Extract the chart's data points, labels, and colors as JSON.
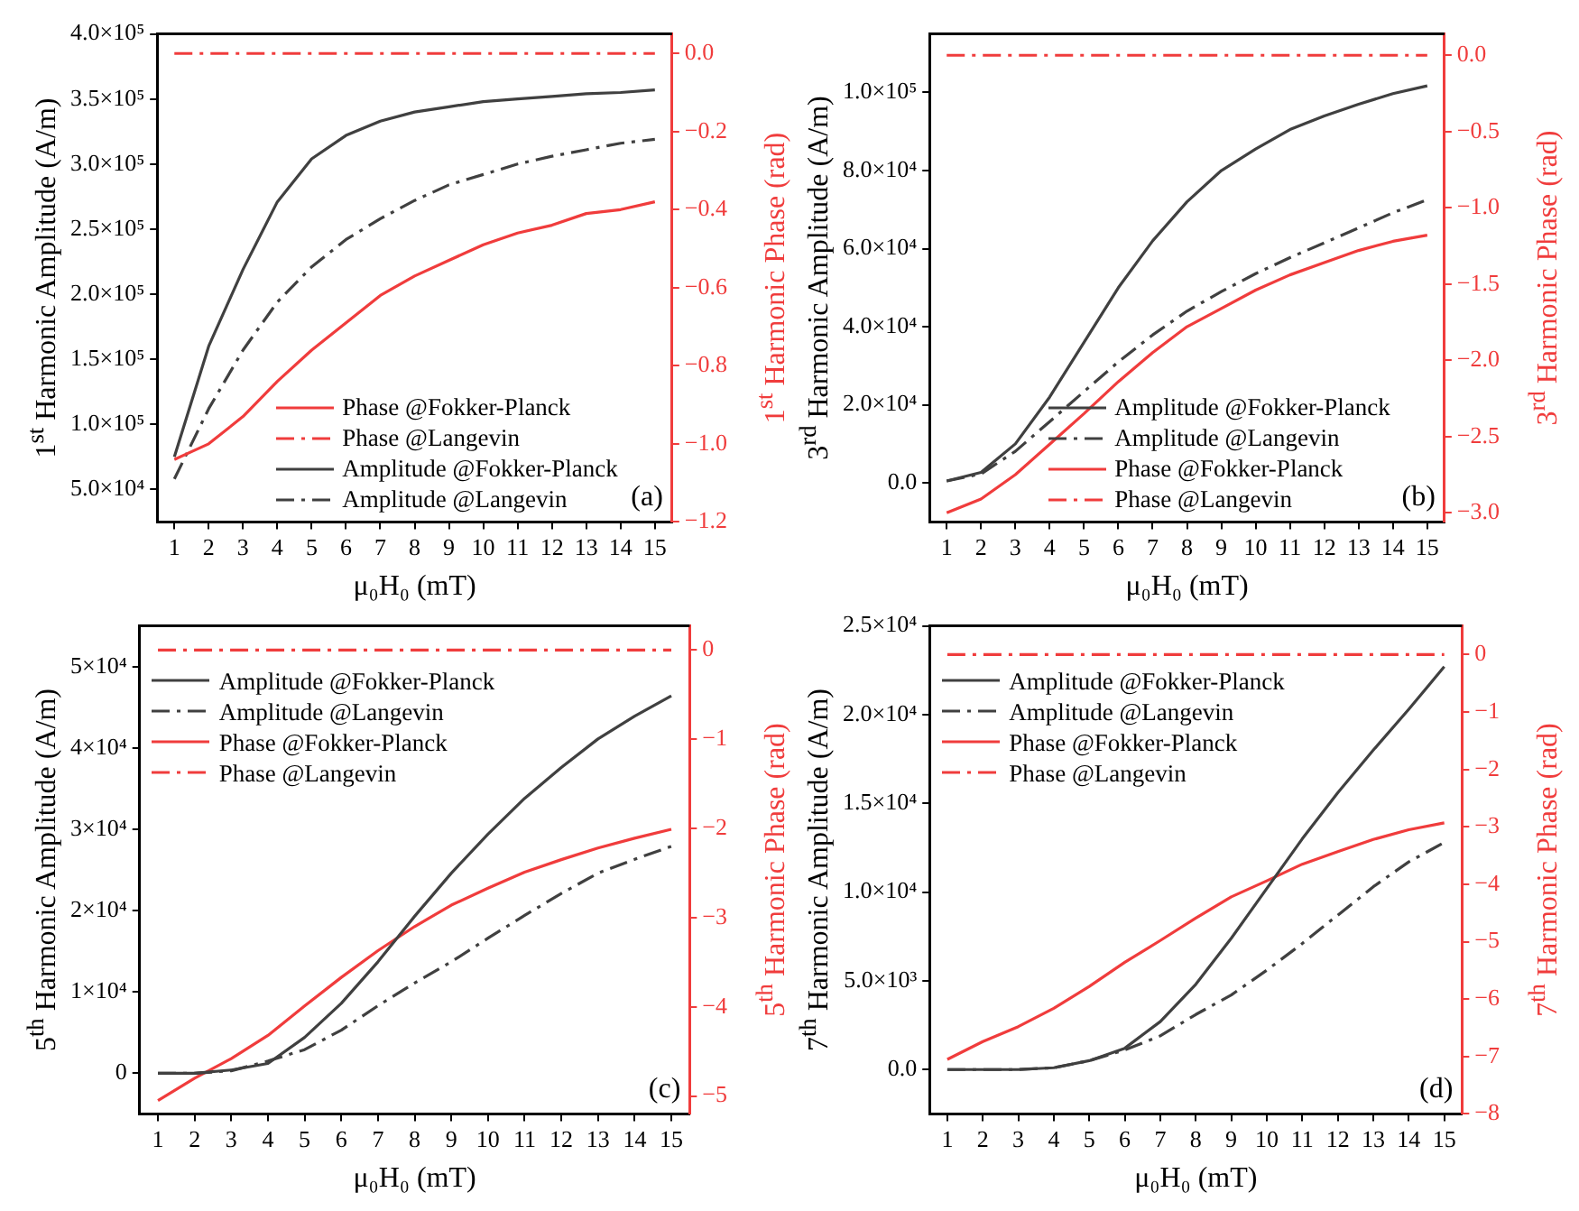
{
  "chart_data": [
    {
      "type": "line",
      "xlabel": "μ₀H₀ (mT)",
      "ylabel": "1$^{st}$ Harmonic Amplitude (A/m)",
      "y2label": "1$^{st}$ Harmonic Phase (rad)",
      "x": [
        1,
        2,
        3,
        4,
        5,
        6,
        7,
        8,
        9,
        10,
        11,
        12,
        13,
        14,
        15
      ],
      "series": [
        {
          "name": "Phase @Fokker-Planck",
          "color": "#f03c3c",
          "axis": "y2",
          "line_style": "solid",
          "values": [
            -1.04,
            -1.0,
            -0.93,
            -0.84,
            -0.76,
            -0.69,
            -0.62,
            -0.57,
            -0.53,
            -0.49,
            -0.46,
            -0.44,
            -0.41,
            -0.4,
            -0.38
          ]
        },
        {
          "name": "Phase @Langevin",
          "color": "#f03c3c",
          "axis": "y2",
          "line_style": "dashed",
          "values": [
            0,
            0,
            0,
            0,
            0,
            0,
            0,
            0,
            0,
            0,
            0,
            0,
            0,
            0,
            0
          ]
        },
        {
          "name": "Amplitude @Fokker-Planck",
          "color": "#404040",
          "line_style": "solid",
          "values": [
            75000,
            160000,
            219000,
            271000,
            304000,
            322000,
            333000,
            340000,
            344000,
            348000,
            350000,
            352000,
            354000,
            355000,
            357000
          ]
        },
        {
          "name": "Amplitude @Langevin",
          "color": "#404040",
          "line_style": "dashed",
          "values": [
            58000,
            112000,
            157000,
            194000,
            221000,
            242000,
            258000,
            272000,
            284000,
            292000,
            300000,
            306000,
            311000,
            316000,
            319000
          ]
        }
      ],
      "xlim": [
        0.5,
        15.5
      ],
      "xticks": [
        1,
        2,
        3,
        4,
        5,
        6,
        7,
        8,
        9,
        10,
        11,
        12,
        13,
        14,
        15
      ],
      "ylim": [
        25000,
        400000
      ],
      "yticks": [
        {
          "value": 50000,
          "label": "5.0×10⁴"
        },
        {
          "value": 100000,
          "label": "1.0×10⁵"
        },
        {
          "value": 150000,
          "label": "1.5×10⁵"
        },
        {
          "value": 200000,
          "label": "2.0×10⁵"
        },
        {
          "value": 250000,
          "label": "2.5×10⁵"
        },
        {
          "value": 300000,
          "label": "3.0×10⁵"
        },
        {
          "value": 350000,
          "label": "3.5×10⁵"
        },
        {
          "value": 400000,
          "label": "4.0×10⁵"
        }
      ],
      "y2lim": [
        -1.2,
        0.05
      ],
      "y2ticks": [
        {
          "value": 0,
          "label": "0.0"
        },
        {
          "value": -0.2,
          "label": "−0.2"
        },
        {
          "value": -0.4,
          "label": "−0.4"
        },
        {
          "value": -0.6,
          "label": "−0.6"
        },
        {
          "value": -0.8,
          "label": "−0.8"
        },
        {
          "value": -1.0,
          "label": "−1.0"
        },
        {
          "value": -1.2,
          "label": "−1.2"
        }
      ],
      "legend": "bottom right",
      "annotations": [
        "(a)"
      ]
    },
    {
      "type": "line",
      "xlabel": "μ₀H₀ (mT)",
      "ylabel": "3$^{rd}$ Harmonic Amplitude (A/m)",
      "y2label": "3$^{rd}$ Harmonic Phase (rad)",
      "x": [
        1,
        2,
        3,
        4,
        5,
        6,
        7,
        8,
        9,
        10,
        11,
        12,
        13,
        14,
        15
      ],
      "series": [
        {
          "name": "Amplitude @Fokker-Planck",
          "color": "#404040",
          "line_style": "solid",
          "values": [
            500,
            2700,
            10000,
            22000,
            36000,
            50000,
            62000,
            72000,
            80000,
            85500,
            90500,
            94000,
            97000,
            99700,
            101700
          ]
        },
        {
          "name": "Amplitude @Langevin",
          "color": "#404040",
          "line_style": "dashed",
          "values": [
            500,
            2300,
            8100,
            15700,
            23400,
            31000,
            37900,
            44000,
            49000,
            53600,
            57700,
            61500,
            65300,
            69200,
            72500
          ]
        },
        {
          "name": "Phase @Fokker-Planck",
          "color": "#f03c3c",
          "axis": "y2",
          "line_style": "solid",
          "values": [
            -3.0,
            -2.91,
            -2.75,
            -2.55,
            -2.35,
            -2.14,
            -1.95,
            -1.78,
            -1.66,
            -1.54,
            -1.44,
            -1.36,
            -1.28,
            -1.22,
            -1.18
          ]
        },
        {
          "name": "Phase @Langevin",
          "color": "#f03c3c",
          "axis": "y2",
          "line_style": "dashed",
          "values": [
            0,
            0,
            0,
            0,
            0,
            0,
            0,
            0,
            0,
            0,
            0,
            0,
            0,
            0,
            0
          ]
        }
      ],
      "xlim": [
        0.5,
        15.5
      ],
      "xticks": [
        1,
        2,
        3,
        4,
        5,
        6,
        7,
        8,
        9,
        10,
        11,
        12,
        13,
        14,
        15
      ],
      "ylim": [
        -10000,
        115000
      ],
      "yticks": [
        {
          "value": 0,
          "label": "0.0"
        },
        {
          "value": 20000,
          "label": "2.0×10⁴"
        },
        {
          "value": 40000,
          "label": "4.0×10⁴"
        },
        {
          "value": 60000,
          "label": "6.0×10⁴"
        },
        {
          "value": 80000,
          "label": "8.0×10⁴"
        },
        {
          "value": 100000,
          "label": "1.0×10⁵"
        }
      ],
      "y2lim": [
        -3.06,
        0.14
      ],
      "y2ticks": [
        {
          "value": 0,
          "label": "0.0"
        },
        {
          "value": -0.5,
          "label": "−0.5"
        },
        {
          "value": -1.0,
          "label": "−1.0"
        },
        {
          "value": -1.5,
          "label": "−1.5"
        },
        {
          "value": -2.0,
          "label": "−2.0"
        },
        {
          "value": -2.5,
          "label": "−2.5"
        },
        {
          "value": -3.0,
          "label": "−3.0"
        }
      ],
      "legend": "bottom right",
      "annotations": [
        "(b)"
      ]
    },
    {
      "type": "line",
      "xlabel": "μ₀H₀ (mT)",
      "ylabel": "5$^{th}$ Harmonic Amplitude (A/m)",
      "y2label": "5$^{th}$ Harmonic Phase (rad)",
      "x": [
        1,
        2,
        3,
        4,
        5,
        6,
        7,
        8,
        9,
        10,
        11,
        12,
        13,
        14,
        15
      ],
      "series": [
        {
          "name": "Amplitude @Fokker-Planck",
          "color": "#404040",
          "line_style": "solid",
          "values": [
            0,
            0,
            400,
            1200,
            4400,
            8600,
            13700,
            19300,
            24600,
            29400,
            33800,
            37600,
            41100,
            43900,
            46400
          ]
        },
        {
          "name": "Amplitude @Langevin",
          "color": "#404040",
          "line_style": "dashed",
          "values": [
            0,
            0,
            300,
            1500,
            2900,
            5300,
            8300,
            11100,
            13700,
            16600,
            19400,
            22100,
            24600,
            26300,
            27900
          ]
        },
        {
          "name": "Phase @Fokker-Planck",
          "color": "#f03c3c",
          "axis": "y2",
          "line_style": "solid",
          "values": [
            -5.05,
            -4.8,
            -4.58,
            -4.32,
            -3.99,
            -3.67,
            -3.37,
            -3.1,
            -2.86,
            -2.67,
            -2.49,
            -2.35,
            -2.22,
            -2.11,
            -2.01
          ]
        },
        {
          "name": "Phase @Langevin",
          "color": "#f03c3c",
          "axis": "y2",
          "line_style": "dashed",
          "values": [
            0,
            0,
            0,
            0,
            0,
            0,
            0,
            0,
            0,
            0,
            0,
            0,
            0,
            0,
            0
          ]
        }
      ],
      "xlim": [
        0.5,
        15.5
      ],
      "xticks": [
        1,
        2,
        3,
        4,
        5,
        6,
        7,
        8,
        9,
        10,
        11,
        12,
        13,
        14,
        15
      ],
      "ylim": [
        -5000,
        55000
      ],
      "yticks": [
        0,
        {
          "value": 10000,
          "label": "1×10⁴"
        },
        {
          "value": 20000,
          "label": "2×10⁴"
        },
        {
          "value": 30000,
          "label": "3×10⁴"
        },
        {
          "value": 40000,
          "label": "4×10⁴"
        },
        {
          "value": 50000,
          "label": "5×10⁴"
        }
      ],
      "y2lim": [
        -5.2,
        0.27
      ],
      "y2ticks": [
        0,
        {
          "value": -1,
          "label": "−1"
        },
        {
          "value": -2,
          "label": "−2"
        },
        {
          "value": -3,
          "label": "−3"
        },
        {
          "value": -4,
          "label": "−4"
        },
        {
          "value": -5,
          "label": "−5"
        }
      ],
      "legend": "top left",
      "annotations": [
        "(c)"
      ]
    },
    {
      "type": "line",
      "xlabel": "μ₀H₀ (mT)",
      "ylabel": "7$^{th}$ Harmonic Amplitude (A/m)",
      "y2label": "7$^{th}$ Harmonic Phase (rad)",
      "x": [
        1,
        2,
        3,
        4,
        5,
        6,
        7,
        8,
        9,
        10,
        11,
        12,
        13,
        14,
        15
      ],
      "series": [
        {
          "name": "Amplitude @Fokker-Planck",
          "color": "#404040",
          "line_style": "solid",
          "values": [
            0,
            0,
            0,
            100,
            500,
            1200,
            2700,
            4800,
            7400,
            10200,
            13000,
            15600,
            18000,
            20300,
            22700
          ]
        },
        {
          "name": "Amplitude @Langevin",
          "color": "#404040",
          "line_style": "dashed",
          "values": [
            0,
            0,
            0,
            100,
            500,
            1100,
            1900,
            3100,
            4200,
            5600,
            7100,
            8700,
            10300,
            11700,
            12800
          ]
        },
        {
          "name": "Phase @Fokker-Planck",
          "color": "#f03c3c",
          "axis": "y2",
          "line_style": "solid",
          "values": [
            -7.05,
            -6.74,
            -6.48,
            -6.16,
            -5.78,
            -5.36,
            -4.98,
            -4.59,
            -4.22,
            -3.94,
            -3.65,
            -3.43,
            -3.22,
            -3.05,
            -2.93
          ]
        },
        {
          "name": "Phase @Langevin",
          "color": "#f03c3c",
          "axis": "y2",
          "line_style": "dashed",
          "values": [
            0,
            0,
            0,
            0,
            0,
            0,
            0,
            0,
            0,
            0,
            0,
            0,
            0,
            0,
            0
          ]
        }
      ],
      "xlim": [
        0.5,
        15.5
      ],
      "xticks": [
        1,
        2,
        3,
        4,
        5,
        6,
        7,
        8,
        9,
        10,
        11,
        12,
        13,
        14,
        15
      ],
      "ylim": [
        -2500,
        25000
      ],
      "yticks": [
        {
          "value": 0,
          "label": "0.0"
        },
        {
          "value": 5000,
          "label": "5.0×10³"
        },
        {
          "value": 10000,
          "label": "1.0×10⁴"
        },
        {
          "value": 15000,
          "label": "1.5×10⁴"
        },
        {
          "value": 20000,
          "label": "2.0×10⁴"
        },
        {
          "value": 25000,
          "label": "2.5×10⁴"
        }
      ],
      "y2lim": [
        -8,
        0.5
      ],
      "y2ticks": [
        0,
        {
          "value": -1,
          "label": "−1"
        },
        {
          "value": -2,
          "label": "−2"
        },
        {
          "value": -3,
          "label": "−3"
        },
        {
          "value": -4,
          "label": "−4"
        },
        {
          "value": -5,
          "label": "−5"
        },
        {
          "value": -6,
          "label": "−6"
        },
        {
          "value": -7,
          "label": "−7"
        },
        {
          "value": -8,
          "label": "−8"
        }
      ],
      "legend": "top left",
      "annotations": [
        "(d)"
      ]
    }
  ]
}
